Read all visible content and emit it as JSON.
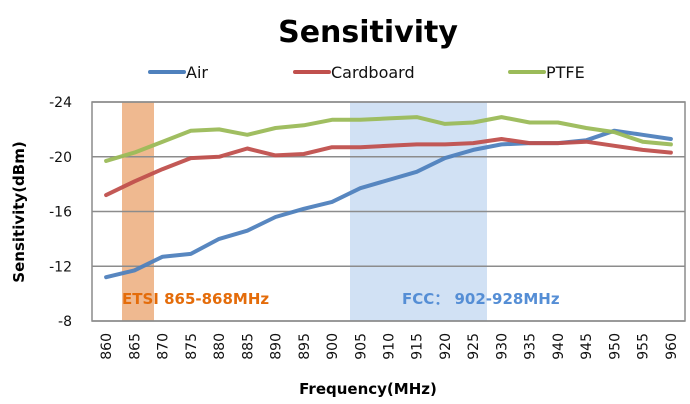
{
  "chart_data": {
    "type": "line",
    "title": "Sensitivity",
    "xlabel": "Frequency(MHz)",
    "ylabel": "Sensitivity(dBm)",
    "categories": [
      "860",
      "865",
      "870",
      "875",
      "880",
      "885",
      "890",
      "895",
      "900",
      "905",
      "910",
      "915",
      "920",
      "925",
      "930",
      "935",
      "940",
      "945",
      "950",
      "955",
      "960"
    ],
    "yticks": [
      "-24",
      "-20",
      "-16",
      "-12",
      "-8"
    ],
    "ytick_values": [
      -24,
      -20,
      -16,
      -12,
      -8
    ],
    "ylim": [
      -8,
      -24
    ],
    "y_inverted": true,
    "grid": true,
    "legend_position": "top",
    "series": [
      {
        "name": "Air",
        "color": "#4f81bd",
        "values": [
          -11.2,
          -11.7,
          -12.7,
          -12.9,
          -14.0,
          -14.6,
          -15.6,
          -16.2,
          -16.7,
          -17.7,
          -18.3,
          -18.9,
          -19.9,
          -20.5,
          -20.9,
          -21.0,
          -21.0,
          -21.2,
          -21.9,
          -21.6,
          -21.3
        ]
      },
      {
        "name": "Cardboard",
        "color": "#c0504d",
        "values": [
          -17.2,
          -18.2,
          -19.1,
          -19.9,
          -20.0,
          -20.6,
          -20.1,
          -20.2,
          -20.7,
          -20.7,
          -20.8,
          -20.9,
          -20.9,
          -21.0,
          -21.3,
          -21.0,
          -21.0,
          -21.1,
          -20.8,
          -20.5,
          -20.3
        ]
      },
      {
        "name": "PTFE",
        "color": "#9bbb59",
        "values": [
          -19.7,
          -20.3,
          -21.1,
          -21.9,
          -22.0,
          -21.6,
          -22.1,
          -22.3,
          -22.7,
          -22.7,
          -22.8,
          -22.9,
          -22.4,
          -22.5,
          -22.9,
          -22.5,
          -22.5,
          -22.1,
          -21.8,
          -21.1,
          -20.9
        ]
      }
    ],
    "bands": [
      {
        "label": "ETSI 865-868MHz",
        "from_mhz": 865,
        "to_mhz": 868,
        "color": "#e9a26b",
        "label_color": "#e46c0a"
      },
      {
        "label": "FCC： 902-928MHz",
        "from_mhz": 902,
        "to_mhz": 928,
        "color": "#c6d9f1",
        "label_color": "#558ed5"
      }
    ]
  }
}
